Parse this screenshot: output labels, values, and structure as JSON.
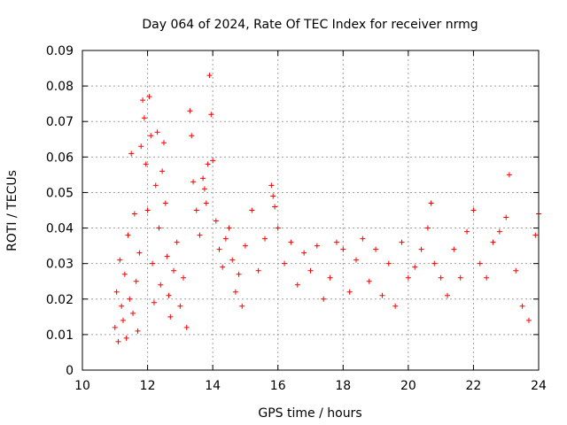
{
  "chart_data": {
    "type": "scatter",
    "title": "Day 064 of 2024, Rate Of TEC Index for receiver nrmg",
    "xlabel": "GPS time / hours",
    "ylabel": "ROTI / TECUs",
    "xlim": [
      10,
      24
    ],
    "ylim": [
      0,
      0.09
    ],
    "x_ticks": [
      10,
      12,
      14,
      16,
      18,
      20,
      22,
      24
    ],
    "y_ticks": [
      0,
      0.01,
      0.02,
      0.03,
      0.04,
      0.05,
      0.06,
      0.07,
      0.08,
      0.09
    ],
    "x_tick_labels": [
      "10",
      "12",
      "14",
      "16",
      "18",
      "20",
      "22",
      "24"
    ],
    "y_tick_labels": [
      "0",
      "0.01",
      "0.02",
      "0.03",
      "0.04",
      "0.05",
      "0.06",
      "0.07",
      "0.08",
      "0.09"
    ],
    "grid": true,
    "marker": "+",
    "color": "#ff0000",
    "series": [
      {
        "name": "ROTI",
        "points": [
          [
            11.0,
            0.012
          ],
          [
            11.05,
            0.022
          ],
          [
            11.1,
            0.008
          ],
          [
            11.15,
            0.031
          ],
          [
            11.2,
            0.018
          ],
          [
            11.25,
            0.014
          ],
          [
            11.3,
            0.027
          ],
          [
            11.35,
            0.009
          ],
          [
            11.4,
            0.038
          ],
          [
            11.45,
            0.02
          ],
          [
            11.5,
            0.061
          ],
          [
            11.55,
            0.016
          ],
          [
            11.6,
            0.044
          ],
          [
            11.65,
            0.025
          ],
          [
            11.7,
            0.011
          ],
          [
            11.75,
            0.033
          ],
          [
            11.8,
            0.063
          ],
          [
            11.85,
            0.076
          ],
          [
            11.9,
            0.071
          ],
          [
            11.95,
            0.058
          ],
          [
            12.0,
            0.045
          ],
          [
            12.05,
            0.077
          ],
          [
            12.1,
            0.066
          ],
          [
            12.15,
            0.03
          ],
          [
            12.2,
            0.019
          ],
          [
            12.25,
            0.052
          ],
          [
            12.3,
            0.067
          ],
          [
            12.35,
            0.04
          ],
          [
            12.4,
            0.024
          ],
          [
            12.45,
            0.056
          ],
          [
            12.5,
            0.064
          ],
          [
            12.55,
            0.047
          ],
          [
            12.6,
            0.032
          ],
          [
            12.65,
            0.021
          ],
          [
            12.7,
            0.015
          ],
          [
            12.8,
            0.028
          ],
          [
            12.9,
            0.036
          ],
          [
            13.0,
            0.018
          ],
          [
            13.1,
            0.026
          ],
          [
            13.2,
            0.012
          ],
          [
            13.3,
            0.073
          ],
          [
            13.35,
            0.066
          ],
          [
            13.4,
            0.053
          ],
          [
            13.5,
            0.045
          ],
          [
            13.6,
            0.038
          ],
          [
            13.7,
            0.054
          ],
          [
            13.75,
            0.051
          ],
          [
            13.8,
            0.047
          ],
          [
            13.85,
            0.058
          ],
          [
            13.9,
            0.083
          ],
          [
            13.95,
            0.072
          ],
          [
            14.0,
            0.059
          ],
          [
            14.1,
            0.042
          ],
          [
            14.2,
            0.034
          ],
          [
            14.3,
            0.029
          ],
          [
            14.4,
            0.037
          ],
          [
            14.5,
            0.04
          ],
          [
            14.6,
            0.031
          ],
          [
            14.7,
            0.022
          ],
          [
            14.8,
            0.027
          ],
          [
            14.9,
            0.018
          ],
          [
            15.0,
            0.035
          ],
          [
            15.2,
            0.045
          ],
          [
            15.4,
            0.028
          ],
          [
            15.6,
            0.037
          ],
          [
            15.8,
            0.052
          ],
          [
            15.85,
            0.049
          ],
          [
            15.9,
            0.046
          ],
          [
            16.0,
            0.04
          ],
          [
            16.2,
            0.03
          ],
          [
            16.4,
            0.036
          ],
          [
            16.6,
            0.024
          ],
          [
            16.8,
            0.033
          ],
          [
            17.0,
            0.028
          ],
          [
            17.2,
            0.035
          ],
          [
            17.4,
            0.02
          ],
          [
            17.6,
            0.026
          ],
          [
            17.8,
            0.036
          ],
          [
            18.0,
            0.034
          ],
          [
            18.2,
            0.022
          ],
          [
            18.4,
            0.031
          ],
          [
            18.6,
            0.037
          ],
          [
            18.8,
            0.025
          ],
          [
            19.0,
            0.034
          ],
          [
            19.2,
            0.021
          ],
          [
            19.4,
            0.03
          ],
          [
            19.6,
            0.018
          ],
          [
            19.8,
            0.036
          ],
          [
            20.0,
            0.026
          ],
          [
            20.2,
            0.029
          ],
          [
            20.4,
            0.034
          ],
          [
            20.6,
            0.04
          ],
          [
            20.7,
            0.047
          ],
          [
            20.8,
            0.03
          ],
          [
            21.0,
            0.026
          ],
          [
            21.2,
            0.021
          ],
          [
            21.4,
            0.034
          ],
          [
            21.6,
            0.026
          ],
          [
            21.8,
            0.039
          ],
          [
            22.0,
            0.045
          ],
          [
            22.2,
            0.03
          ],
          [
            22.4,
            0.026
          ],
          [
            22.6,
            0.036
          ],
          [
            22.8,
            0.039
          ],
          [
            23.0,
            0.043
          ],
          [
            23.1,
            0.055
          ],
          [
            23.3,
            0.028
          ],
          [
            23.5,
            0.018
          ],
          [
            23.7,
            0.014
          ],
          [
            23.9,
            0.038
          ],
          [
            24.0,
            0.044
          ]
        ]
      }
    ]
  }
}
